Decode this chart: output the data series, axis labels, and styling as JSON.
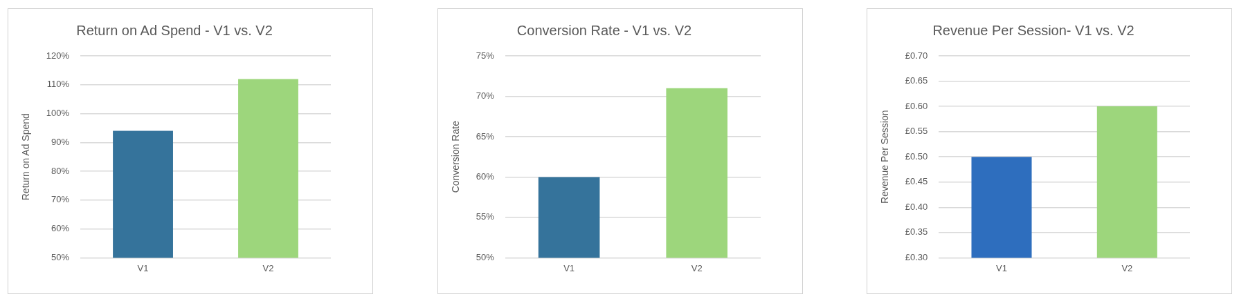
{
  "chart_data": [
    {
      "type": "bar",
      "title": "Return on Ad Spend - V1 vs. V2",
      "ylabel": "Return on Ad Spend",
      "categories": [
        "V1",
        "V2"
      ],
      "values": [
        94,
        112
      ],
      "colors": [
        "#35739b",
        "#9dd67c"
      ],
      "ylim": [
        50,
        120
      ],
      "yticks": [
        {
          "value": 50,
          "label": "50%"
        },
        {
          "value": 60,
          "label": "60%"
        },
        {
          "value": 70,
          "label": "70%"
        },
        {
          "value": 80,
          "label": "80%"
        },
        {
          "value": 90,
          "label": "90%"
        },
        {
          "value": 100,
          "label": "100%"
        },
        {
          "value": 110,
          "label": "110%"
        },
        {
          "value": 120,
          "label": "120%"
        }
      ],
      "grid": "y",
      "legend": false
    },
    {
      "type": "bar",
      "title": "Conversion Rate - V1 vs. V2",
      "ylabel": "Conversion Rate",
      "categories": [
        "V1",
        "V2"
      ],
      "values": [
        60,
        71
      ],
      "colors": [
        "#35739b",
        "#9dd67c"
      ],
      "ylim": [
        50,
        75
      ],
      "yticks": [
        {
          "value": 50,
          "label": "50%"
        },
        {
          "value": 55,
          "label": "55%"
        },
        {
          "value": 60,
          "label": "60%"
        },
        {
          "value": 65,
          "label": "65%"
        },
        {
          "value": 70,
          "label": "70%"
        },
        {
          "value": 75,
          "label": "75%"
        }
      ],
      "grid": "y",
      "legend": false
    },
    {
      "type": "bar",
      "title": "Revenue Per Session- V1 vs. V2",
      "ylabel": "Revenue Per Session",
      "categories": [
        "V1",
        "V2"
      ],
      "values": [
        0.5,
        0.6
      ],
      "colors": [
        "#2e6ebe",
        "#9dd67c"
      ],
      "ylim": [
        0.3,
        0.7
      ],
      "yticks": [
        {
          "value": 0.3,
          "label": "£0.30"
        },
        {
          "value": 0.35,
          "label": "£0.35"
        },
        {
          "value": 0.4,
          "label": "£0.40"
        },
        {
          "value": 0.45,
          "label": "£0.45"
        },
        {
          "value": 0.5,
          "label": "£0.50"
        },
        {
          "value": 0.55,
          "label": "£0.55"
        },
        {
          "value": 0.6,
          "label": "£0.60"
        },
        {
          "value": 0.65,
          "label": "£0.65"
        },
        {
          "value": 0.7,
          "label": "£0.70"
        }
      ],
      "grid": "y",
      "legend": false
    }
  ]
}
